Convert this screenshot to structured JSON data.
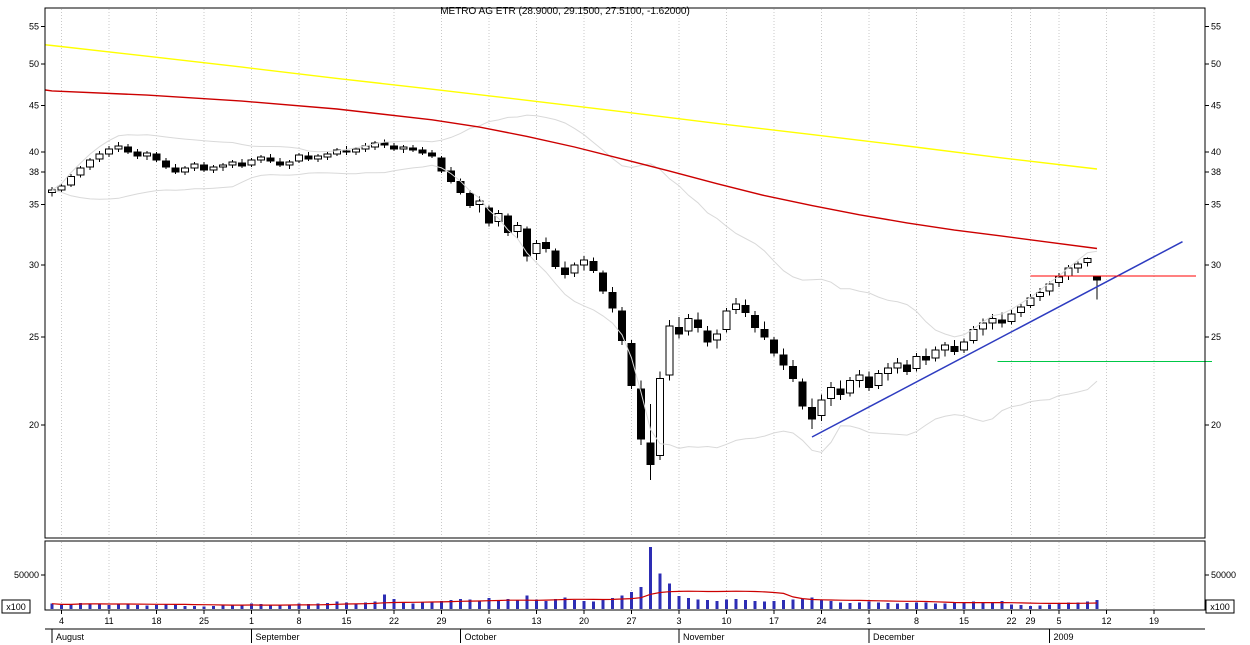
{
  "title": "METRO AG ETR (28.9000, 29.1500, 27.5100, -1.62000)",
  "volume_axis": {
    "label": "50000",
    "multiplier": "x100"
  },
  "colors": {
    "background": "#ffffff",
    "frame": "#000000",
    "grid": "#c9c9c9",
    "candle_outline": "#000000",
    "candle_up_fill": "#ffffff",
    "candle_down_fill": "#000000",
    "ma_long": "#ffff00",
    "ma_medium": "#cc0000",
    "band": "#d9d9d9",
    "trendline": "#2e3cc0",
    "resistance": "#ff0000",
    "support": "#00c846",
    "volume_bar": "#2d2db4",
    "volume_ma": "#cc0000"
  },
  "chart_data": {
    "type": "candlestick",
    "symbol": "METRO AG ETR",
    "quote_readout": {
      "close": 28.9,
      "high": 29.15,
      "low": 27.51,
      "change": -1.62
    },
    "scale": "semilog",
    "price_axis_labels": [
      55,
      50,
      45,
      40,
      38,
      35,
      30,
      25,
      20
    ],
    "volume_axis_gridline": 50000,
    "volume_multiplier": "x100",
    "x_axis": {
      "weeks": [
        {
          "i": 1,
          "t": "4"
        },
        {
          "i": 6,
          "t": "11"
        },
        {
          "i": 11,
          "t": "18"
        },
        {
          "i": 16,
          "t": "25"
        },
        {
          "i": 21,
          "t": "1"
        },
        {
          "i": 26,
          "t": "8"
        },
        {
          "i": 31,
          "t": "15"
        },
        {
          "i": 36,
          "t": "22"
        },
        {
          "i": 41,
          "t": "29"
        },
        {
          "i": 46,
          "t": "6"
        },
        {
          "i": 51,
          "t": "13"
        },
        {
          "i": 56,
          "t": "20"
        },
        {
          "i": 61,
          "t": "27"
        },
        {
          "i": 66,
          "t": "3"
        },
        {
          "i": 71,
          "t": "10"
        },
        {
          "i": 76,
          "t": "17"
        },
        {
          "i": 81,
          "t": "24"
        },
        {
          "i": 86,
          "t": "1"
        },
        {
          "i": 91,
          "t": "8"
        },
        {
          "i": 96,
          "t": "15"
        },
        {
          "i": 101,
          "t": "22"
        },
        {
          "i": 103,
          "t": "29"
        },
        {
          "i": 106,
          "t": "5"
        },
        {
          "i": 111,
          "t": "12"
        },
        {
          "i": 116,
          "t": "19"
        }
      ],
      "months": [
        {
          "i": 0,
          "t": "August"
        },
        {
          "i": 21,
          "t": "September"
        },
        {
          "i": 43,
          "t": "October"
        },
        {
          "i": 66,
          "t": "November"
        },
        {
          "i": 86,
          "t": "December"
        },
        {
          "i": 105,
          "t": "2009"
        }
      ]
    },
    "ohlc": [
      [
        36.1,
        36.6,
        35.7,
        36.3
      ],
      [
        36.3,
        36.9,
        36.1,
        36.7
      ],
      [
        36.8,
        37.8,
        36.6,
        37.6
      ],
      [
        37.7,
        38.6,
        37.5,
        38.4
      ],
      [
        38.5,
        39.4,
        38.2,
        39.2
      ],
      [
        39.3,
        40.1,
        39.0,
        39.8
      ],
      [
        39.8,
        40.6,
        39.5,
        40.3
      ],
      [
        40.3,
        41.0,
        40.0,
        40.6
      ],
      [
        40.5,
        40.8,
        39.8,
        40.0
      ],
      [
        40.0,
        40.3,
        39.3,
        39.6
      ],
      [
        39.6,
        40.1,
        39.2,
        39.9
      ],
      [
        39.8,
        40.0,
        39.0,
        39.2
      ],
      [
        39.1,
        39.4,
        38.3,
        38.5
      ],
      [
        38.4,
        38.8,
        37.8,
        38.0
      ],
      [
        38.0,
        38.6,
        37.7,
        38.4
      ],
      [
        38.4,
        39.0,
        38.1,
        38.8
      ],
      [
        38.7,
        39.0,
        38.0,
        38.2
      ],
      [
        38.2,
        38.7,
        37.9,
        38.5
      ],
      [
        38.5,
        38.9,
        38.1,
        38.7
      ],
      [
        38.7,
        39.2,
        38.4,
        39.0
      ],
      [
        38.9,
        39.3,
        38.4,
        38.6
      ],
      [
        38.7,
        39.4,
        38.5,
        39.2
      ],
      [
        39.2,
        39.7,
        38.9,
        39.5
      ],
      [
        39.4,
        39.8,
        38.9,
        39.1
      ],
      [
        39.0,
        39.4,
        38.5,
        38.7
      ],
      [
        38.7,
        39.2,
        38.3,
        39.0
      ],
      [
        39.1,
        39.9,
        38.9,
        39.7
      ],
      [
        39.6,
        40.0,
        39.1,
        39.3
      ],
      [
        39.3,
        39.8,
        39.0,
        39.6
      ],
      [
        39.5,
        40.0,
        39.2,
        39.8
      ],
      [
        39.8,
        40.4,
        39.6,
        40.2
      ],
      [
        40.1,
        40.6,
        39.7,
        40.0
      ],
      [
        40.0,
        40.5,
        39.7,
        40.3
      ],
      [
        40.3,
        40.9,
        40.0,
        40.6
      ],
      [
        40.5,
        41.1,
        40.2,
        40.9
      ],
      [
        40.9,
        41.3,
        40.4,
        40.7
      ],
      [
        40.6,
        40.9,
        40.1,
        40.3
      ],
      [
        40.3,
        40.7,
        39.9,
        40.5
      ],
      [
        40.4,
        40.7,
        40.0,
        40.2
      ],
      [
        40.2,
        40.5,
        39.7,
        39.9
      ],
      [
        39.9,
        40.2,
        39.4,
        39.6
      ],
      [
        39.4,
        39.6,
        37.9,
        38.1
      ],
      [
        38.1,
        38.5,
        36.9,
        37.1
      ],
      [
        37.1,
        37.4,
        35.9,
        36.1
      ],
      [
        36.0,
        36.3,
        34.7,
        34.9
      ],
      [
        35.0,
        35.7,
        34.3,
        35.3
      ],
      [
        34.7,
        34.9,
        33.1,
        33.4
      ],
      [
        33.5,
        34.5,
        33.1,
        34.2
      ],
      [
        34.0,
        34.2,
        32.3,
        32.6
      ],
      [
        32.7,
        33.5,
        32.1,
        33.2
      ],
      [
        32.9,
        33.1,
        30.3,
        30.7
      ],
      [
        30.9,
        32.0,
        30.4,
        31.7
      ],
      [
        31.8,
        32.2,
        31.0,
        31.3
      ],
      [
        31.1,
        31.3,
        29.7,
        29.9
      ],
      [
        29.8,
        30.3,
        29.0,
        29.3
      ],
      [
        29.4,
        30.2,
        29.1,
        30.0
      ],
      [
        30.0,
        30.7,
        29.6,
        30.4
      ],
      [
        30.3,
        30.6,
        29.4,
        29.6
      ],
      [
        29.4,
        29.6,
        27.9,
        28.1
      ],
      [
        28.0,
        28.4,
        26.6,
        26.9
      ],
      [
        26.7,
        27.0,
        24.5,
        24.8
      ],
      [
        24.6,
        24.8,
        21.9,
        22.1
      ],
      [
        21.9,
        22.4,
        19.0,
        19.3
      ],
      [
        19.1,
        21.1,
        17.4,
        18.1
      ],
      [
        18.5,
        22.9,
        18.3,
        22.5
      ],
      [
        22.7,
        26.1,
        22.4,
        25.7
      ],
      [
        25.6,
        26.3,
        24.9,
        25.2
      ],
      [
        25.4,
        26.5,
        25.1,
        26.2
      ],
      [
        26.1,
        26.6,
        25.3,
        25.6
      ],
      [
        25.4,
        25.7,
        24.4,
        24.7
      ],
      [
        24.8,
        25.5,
        24.3,
        25.2
      ],
      [
        25.5,
        26.9,
        25.3,
        26.7
      ],
      [
        26.8,
        27.6,
        26.5,
        27.2
      ],
      [
        27.1,
        27.5,
        26.3,
        26.6
      ],
      [
        26.4,
        26.7,
        25.3,
        25.6
      ],
      [
        25.5,
        26.0,
        24.8,
        25.0
      ],
      [
        24.8,
        25.0,
        23.8,
        24.0
      ],
      [
        23.9,
        24.3,
        23.0,
        23.3
      ],
      [
        23.2,
        23.6,
        22.3,
        22.5
      ],
      [
        22.3,
        22.5,
        20.8,
        21.0
      ],
      [
        20.9,
        21.4,
        19.8,
        20.3
      ],
      [
        20.5,
        21.6,
        20.2,
        21.3
      ],
      [
        21.4,
        22.3,
        21.0,
        22.0
      ],
      [
        21.9,
        22.4,
        21.3,
        21.6
      ],
      [
        21.7,
        22.6,
        21.5,
        22.4
      ],
      [
        22.4,
        23.0,
        22.0,
        22.7
      ],
      [
        22.6,
        22.9,
        21.8,
        22.0
      ],
      [
        22.1,
        23.0,
        21.9,
        22.8
      ],
      [
        22.8,
        23.4,
        22.4,
        23.1
      ],
      [
        23.1,
        23.7,
        22.8,
        23.4
      ],
      [
        23.3,
        23.6,
        22.7,
        22.9
      ],
      [
        23.1,
        24.0,
        22.9,
        23.8
      ],
      [
        23.8,
        24.3,
        23.3,
        23.6
      ],
      [
        23.7,
        24.4,
        23.5,
        24.2
      ],
      [
        24.2,
        24.7,
        23.8,
        24.5
      ],
      [
        24.4,
        24.8,
        23.9,
        24.1
      ],
      [
        24.2,
        24.9,
        24.0,
        24.7
      ],
      [
        24.8,
        25.7,
        24.6,
        25.5
      ],
      [
        25.5,
        26.2,
        25.1,
        25.9
      ],
      [
        25.9,
        26.5,
        25.5,
        26.2
      ],
      [
        26.1,
        26.6,
        25.6,
        25.9
      ],
      [
        26.0,
        26.8,
        25.8,
        26.5
      ],
      [
        26.6,
        27.2,
        26.3,
        27.0
      ],
      [
        27.1,
        27.9,
        26.9,
        27.6
      ],
      [
        27.7,
        28.3,
        27.4,
        28.0
      ],
      [
        28.1,
        28.8,
        27.8,
        28.6
      ],
      [
        28.7,
        29.4,
        28.4,
        29.1
      ],
      [
        29.2,
        30.0,
        28.9,
        29.8
      ],
      [
        29.8,
        30.3,
        29.4,
        30.1
      ],
      [
        30.2,
        30.6,
        29.9,
        30.5
      ],
      [
        29.15,
        29.15,
        27.51,
        28.9
      ]
    ],
    "volume": [
      9000,
      7000,
      8000,
      10000,
      9500,
      8500,
      7500,
      9000,
      8500,
      7000,
      6500,
      7000,
      8000,
      7500,
      6000,
      5500,
      5000,
      6000,
      6500,
      7000,
      8000,
      9000,
      8500,
      8000,
      7500,
      8000,
      9000,
      8500,
      9500,
      10000,
      12000,
      11000,
      9000,
      10500,
      12000,
      22000,
      16000,
      10000,
      9500,
      11000,
      10500,
      13000,
      14000,
      16000,
      15000,
      13000,
      17000,
      14000,
      16000,
      13500,
      21000,
      15000,
      13000,
      16000,
      18000,
      14000,
      13000,
      12000,
      15000,
      17000,
      21000,
      26000,
      33000,
      90000,
      52000,
      38000,
      20000,
      17000,
      15000,
      14000,
      13000,
      15000,
      16000,
      14000,
      13000,
      12000,
      13000,
      14000,
      15000,
      16000,
      18000,
      14000,
      13000,
      11000,
      10000,
      11000,
      12000,
      11000,
      10000,
      9500,
      10000,
      11000,
      10500,
      9500,
      9000,
      10000,
      11000,
      12000,
      11000,
      10000,
      13000,
      8000,
      7000,
      6000,
      6500,
      8000,
      10000,
      11000,
      10500,
      12000,
      14000
    ],
    "overlays": {
      "sma_long": {
        "indices": [
          -0.7,
          0,
          10,
          20,
          30,
          40,
          50,
          60,
          70,
          80,
          90,
          100,
          110
        ],
        "values": [
          52.5,
          52.4,
          51.0,
          49.6,
          48.2,
          46.9,
          45.6,
          44.3,
          43.0,
          41.8,
          40.6,
          39.4,
          38.3
        ]
      },
      "sma_medium": {
        "indices": [
          -0.7,
          0,
          10,
          20,
          30,
          40,
          45,
          50,
          55,
          60,
          65,
          70,
          75,
          80,
          85,
          90,
          95,
          100,
          105,
          110
        ],
        "values": [
          46.8,
          46.7,
          46.2,
          45.5,
          44.6,
          43.4,
          42.6,
          41.6,
          40.5,
          39.3,
          38.1,
          36.9,
          35.8,
          34.9,
          34.1,
          33.4,
          32.8,
          32.3,
          31.8,
          31.3
        ]
      },
      "bollinger": {
        "period": 20,
        "stddev": 2
      },
      "volume_ma_period": 15,
      "trendline": {
        "from": {
          "index": 80,
          "price": 19.4
        },
        "to": {
          "index": 119,
          "price": 31.85
        }
      },
      "hline_resistance": {
        "price": 29.2,
        "from_index": 103,
        "to_index": 120.4
      },
      "hline_support": {
        "price": 23.5,
        "from_index": 99.5,
        "to_index": 122.1
      }
    }
  }
}
